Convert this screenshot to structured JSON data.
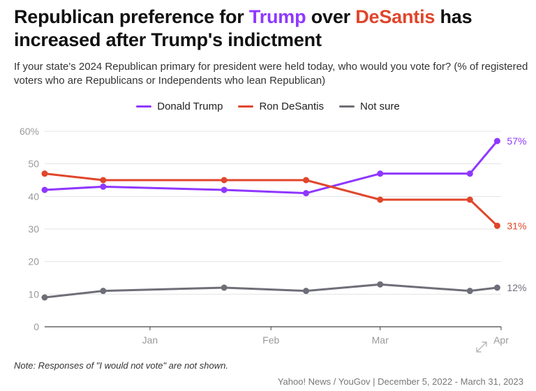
{
  "title": {
    "part1": "Republican preference for ",
    "trump": "Trump",
    "part2": " over ",
    "desantis": "DeSantis",
    "part3": " has increased after Trump's indictment"
  },
  "subtitle": "If your state's 2024 Republican primary for president were held today, who would you vote for? (% of registered voters who are Republicans or Independents who lean Republican)",
  "legend": [
    {
      "label": "Donald Trump",
      "color": "#8f37ff"
    },
    {
      "label": "Ron DeSantis",
      "color": "#e0462b"
    },
    {
      "label": "Not sure",
      "color": "#6e6e78"
    }
  ],
  "note": "Note: Responses of \"I would not vote\" are not shown.",
  "source": "Yahoo! News / YouGov | December 5, 2022 - March 31, 2023",
  "expand_icon": "expand-arrow-icon",
  "chart_data": {
    "type": "line",
    "x": [
      "2022-12-05",
      "2022-12-20",
      "2023-01-20",
      "2023-02-10",
      "2023-03-01",
      "2023-03-24",
      "2023-03-31"
    ],
    "series": [
      {
        "name": "Donald Trump",
        "color": "#8f37ff",
        "values": [
          42,
          43,
          42,
          41,
          47,
          47,
          57
        ],
        "end_label": "57%"
      },
      {
        "name": "Ron DeSantis",
        "color": "#e0462b",
        "values": [
          47,
          45,
          45,
          45,
          39,
          39,
          31
        ],
        "end_label": "31%"
      },
      {
        "name": "Not sure",
        "color": "#6e6e78",
        "values": [
          9,
          11,
          12,
          11,
          13,
          11,
          12
        ],
        "end_label": "12%"
      }
    ],
    "y_ticks": [
      "0",
      "10",
      "20",
      "30",
      "40",
      "50",
      "60%"
    ],
    "y_tick_values": [
      0,
      10,
      20,
      30,
      40,
      50,
      60
    ],
    "x_ticks": [
      {
        "label": "Jan",
        "date": "2023-01-01"
      },
      {
        "label": "Feb",
        "date": "2023-02-01"
      },
      {
        "label": "Mar",
        "date": "2023-03-01"
      },
      {
        "label": "Apr",
        "date": "2023-04-01"
      }
    ],
    "ylim": [
      0,
      60
    ],
    "xlim": [
      "2022-12-05",
      "2023-04-01"
    ],
    "grid": true,
    "legend_position": "top-center"
  }
}
